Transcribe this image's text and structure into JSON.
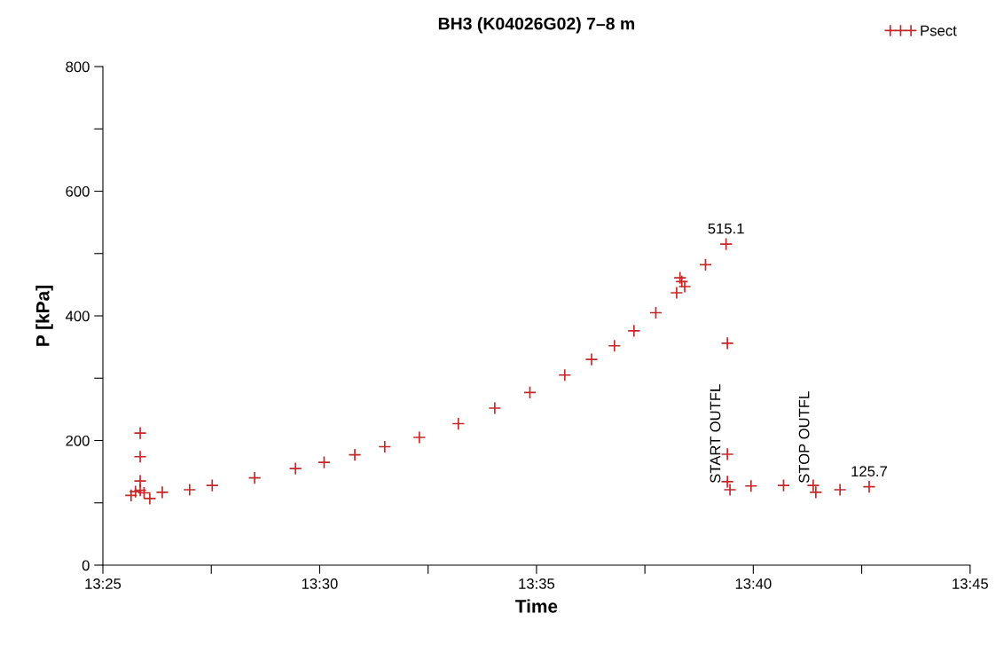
{
  "chart_data": {
    "type": "scatter",
    "title": "BH3 (K04026G02) 7–8 m",
    "xlabel": "Time",
    "ylabel": "P [kPa]",
    "xlim": [
      13.416667,
      13.75
    ],
    "xticks": [
      {
        "value": 13.416667,
        "label": "13:25"
      },
      {
        "value": 13.458333,
        "label": null
      },
      {
        "value": 13.5,
        "label": "13:30"
      },
      {
        "value": 13.541667,
        "label": null
      },
      {
        "value": 13.583333,
        "label": "13:35"
      },
      {
        "value": 13.625,
        "label": null
      },
      {
        "value": 13.666667,
        "label": "13:40"
      },
      {
        "value": 13.708333,
        "label": null
      },
      {
        "value": 13.75,
        "label": "13:45"
      }
    ],
    "ylim": [
      0,
      800
    ],
    "yticks": [
      0,
      {
        "value": 100,
        "label": null
      },
      200,
      {
        "value": 300,
        "label": null
      },
      400,
      {
        "value": 500,
        "label": null
      },
      600,
      {
        "value": 700,
        "label": null
      },
      800
    ],
    "marker": "cross",
    "grid": false,
    "legend": "top right",
    "series": [
      {
        "name": "Psect",
        "color": "#c62828",
        "x": [
          13.4275,
          13.4292,
          13.431,
          13.431,
          13.431,
          13.431,
          13.4325,
          13.4347,
          13.4395,
          13.45,
          13.4587,
          13.475,
          13.4907,
          13.5017,
          13.5135,
          13.525,
          13.5383,
          13.5533,
          13.5673,
          13.5808,
          13.5942,
          13.6045,
          13.6133,
          13.6208,
          13.6292,
          13.6372,
          13.6385,
          13.6392,
          13.6403,
          13.6483,
          13.6562,
          13.6567,
          13.6567,
          13.6567,
          13.6577,
          13.6658,
          13.6783,
          13.6897,
          13.6907,
          13.7,
          13.7112
        ],
        "values": [
          112,
          118,
          120,
          212,
          174,
          135,
          116,
          107,
          117,
          121,
          128,
          140,
          155,
          165,
          177,
          190,
          205,
          227,
          252,
          277,
          305,
          330,
          352,
          376,
          405,
          437,
          461,
          455,
          447,
          482,
          515.1,
          356,
          178,
          134,
          121,
          127,
          128,
          128,
          117,
          121,
          125.7
        ],
        "value_labels": [
          null,
          null,
          null,
          null,
          null,
          null,
          null,
          null,
          null,
          null,
          null,
          null,
          null,
          null,
          null,
          null,
          null,
          null,
          null,
          null,
          null,
          null,
          null,
          null,
          null,
          null,
          null,
          null,
          null,
          null,
          "515.1",
          null,
          null,
          null,
          null,
          null,
          null,
          null,
          null,
          null,
          "125.7"
        ]
      }
    ],
    "annotations": [
      "START OUTFL",
      "STOP OUTFL"
    ]
  }
}
